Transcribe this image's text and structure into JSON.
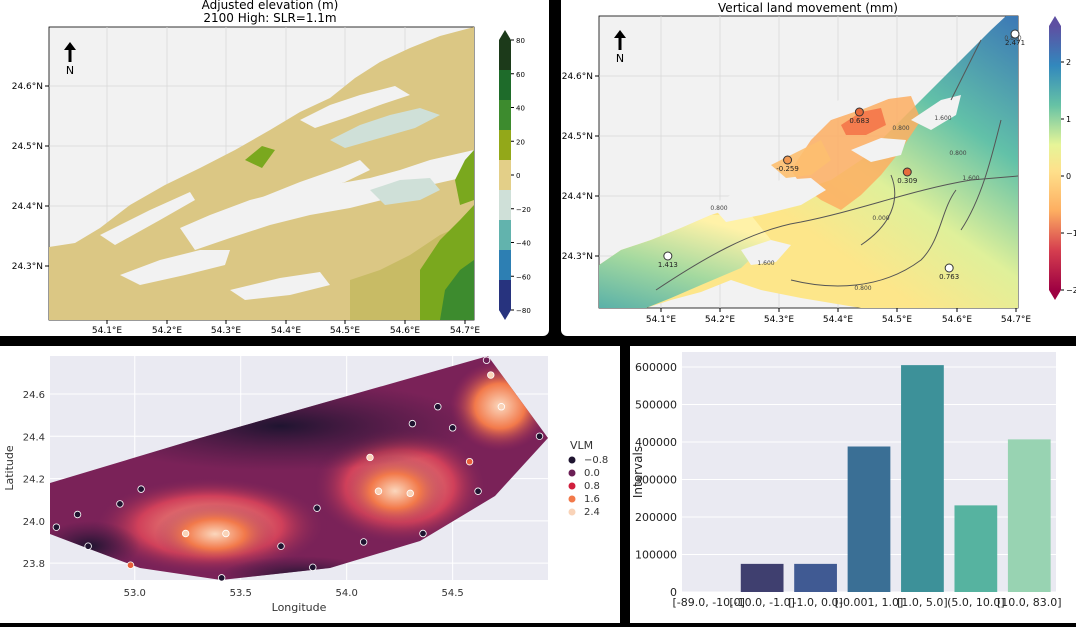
{
  "colors": {
    "land_dry": "#dbc784",
    "land_mid": "#c8bb65",
    "veg": "#7aa81e",
    "shallow": "#c9d9d1",
    "plot_bg": "#f2f2f2",
    "seaborn_bg": "#eaeaf2"
  },
  "panel1": {
    "title": "Adjusted elevation (m)",
    "subtitle": "2100 High: SLR=1.1m",
    "north_label": "N",
    "xticks": [
      "54.1°E",
      "54.2°E",
      "54.3°E",
      "54.4°E",
      "54.5°E",
      "54.6°E",
      "54.7°E"
    ],
    "yticks": [
      "24.6°N",
      "24.5°N",
      "24.4°N",
      "24.3°N"
    ],
    "colorbar": {
      "ticks": [
        "80",
        "60",
        "40",
        "20",
        "0",
        "−20",
        "−40",
        "−60",
        "−80"
      ],
      "colors": [
        "#1c3a1a",
        "#1e6b2a",
        "#3d8b2e",
        "#93a819",
        "#e3cf88",
        "#cfe0d8",
        "#62b3ad",
        "#2d7fb3",
        "#27337e"
      ]
    }
  },
  "panel2": {
    "title": "Vertical land movement (mm)",
    "north_label": "N",
    "xticks": [
      "54.1°E",
      "54.2°E",
      "54.3°E",
      "54.4°E",
      "54.5°E",
      "54.6°E",
      "54.7°E"
    ],
    "yticks": [
      "24.6°N",
      "24.5°N",
      "24.4°N",
      "24.3°N"
    ],
    "colorbar_ticks": [
      "2",
      "1",
      "0",
      "−1",
      "−2"
    ],
    "points": [
      {
        "label": "0.683",
        "lon": 54.43,
        "lat": 24.54,
        "color": "#e66b3c"
      },
      {
        "label": "-0.259",
        "lon": 54.31,
        "lat": 24.46,
        "color": "#f29a52"
      },
      {
        "label": "0.309",
        "lon": 54.51,
        "lat": 24.44,
        "color": "#e66b3c"
      },
      {
        "label": "1.413",
        "lon": 54.11,
        "lat": 24.3,
        "color": "#ffffff"
      },
      {
        "label": "0.763",
        "lon": 54.58,
        "lat": 24.28,
        "color": "#ffffff"
      },
      {
        "label": "2.471",
        "lon": 54.69,
        "lat": 24.67,
        "color": "#ffffff"
      }
    ],
    "contour_labels": [
      "0.800",
      "1.600",
      "0.000",
      "0.800",
      "1.600",
      "0.800",
      "1.600",
      "0.800",
      "0.800"
    ]
  },
  "panel3": {
    "xlabel": "Longitude",
    "ylabel": "Latitude",
    "xticks": [
      "53.0",
      "53.5",
      "54.0",
      "54.5"
    ],
    "yticks": [
      "24.6",
      "24.4",
      "24.2",
      "24.0",
      "23.8"
    ],
    "legend_title": "VLM",
    "legend": [
      {
        "label": "−0.8",
        "color": "#1f1430"
      },
      {
        "label": "0.0",
        "color": "#6b1f55"
      },
      {
        "label": "0.8",
        "color": "#d01f3d"
      },
      {
        "label": "1.6",
        "color": "#f2794a"
      },
      {
        "label": "2.4",
        "color": "#f9d3b8"
      }
    ],
    "points": [
      {
        "lon": 52.63,
        "lat": 23.97,
        "c": "#1f1430"
      },
      {
        "lon": 52.73,
        "lat": 24.03,
        "c": "#1f1430"
      },
      {
        "lon": 52.78,
        "lat": 23.88,
        "c": "#1f1430"
      },
      {
        "lon": 52.93,
        "lat": 24.08,
        "c": "#1f1430"
      },
      {
        "lon": 53.03,
        "lat": 24.15,
        "c": "#1f1430"
      },
      {
        "lon": 52.98,
        "lat": 23.79,
        "c": "#e8603a"
      },
      {
        "lon": 53.24,
        "lat": 23.94,
        "c": "#f9d3b8"
      },
      {
        "lon": 53.43,
        "lat": 23.94,
        "c": "#f9d3b8"
      },
      {
        "lon": 53.41,
        "lat": 23.73,
        "c": "#1f1430"
      },
      {
        "lon": 53.69,
        "lat": 23.88,
        "c": "#1f1430"
      },
      {
        "lon": 53.84,
        "lat": 23.78,
        "c": "#1f1430"
      },
      {
        "lon": 53.86,
        "lat": 24.06,
        "c": "#1f1430"
      },
      {
        "lon": 54.08,
        "lat": 23.9,
        "c": "#1f1430"
      },
      {
        "lon": 54.11,
        "lat": 24.3,
        "c": "#f9d3b8"
      },
      {
        "lon": 54.15,
        "lat": 24.14,
        "c": "#f9d3b8"
      },
      {
        "lon": 54.31,
        "lat": 24.46,
        "c": "#1f1430"
      },
      {
        "lon": 54.3,
        "lat": 24.13,
        "c": "#f9d3b8"
      },
      {
        "lon": 54.36,
        "lat": 23.94,
        "c": "#1f1430"
      },
      {
        "lon": 54.43,
        "lat": 24.54,
        "c": "#1f1430"
      },
      {
        "lon": 54.5,
        "lat": 24.44,
        "c": "#1f1430"
      },
      {
        "lon": 54.58,
        "lat": 24.28,
        "c": "#e8603a"
      },
      {
        "lon": 54.62,
        "lat": 24.14,
        "c": "#1f1430"
      },
      {
        "lon": 54.66,
        "lat": 24.76,
        "c": "#6b1f55"
      },
      {
        "lon": 54.68,
        "lat": 24.69,
        "c": "#f9d3b8"
      },
      {
        "lon": 54.73,
        "lat": 24.54,
        "c": "#f9d3b8"
      },
      {
        "lon": 54.91,
        "lat": 24.4,
        "c": "#1f1430"
      }
    ]
  },
  "chart_data": [
    {
      "type": "bar",
      "categories": [
        "[-89.0, -10.0]",
        "[-10.0, -1.0]",
        "[-1.0, 0.0]",
        "[-0.001, 1.0]",
        "[1.0, 5.0]",
        "(5.0, 10.0]",
        "[10.0, 83.0]"
      ],
      "values": [
        0,
        75000,
        75000,
        388000,
        605000,
        231000,
        407000
      ],
      "colors": [
        "#3e2f5b",
        "#3f3f6f",
        "#405a93",
        "#3a6f95",
        "#3d9199",
        "#56b3a0",
        "#98d3b2"
      ],
      "ylabel": "Intervals",
      "yticks": [
        "0",
        "100000",
        "200000",
        "300000",
        "400000",
        "500000",
        "600000"
      ],
      "ylim": [
        0,
        640000
      ]
    }
  ]
}
